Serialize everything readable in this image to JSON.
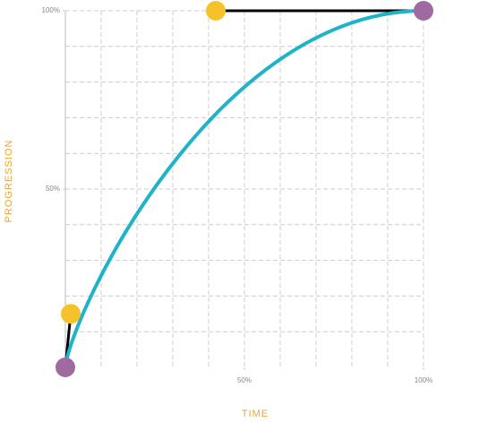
{
  "chart_data": {
    "type": "bezier",
    "x_label": "TIME",
    "y_label": "PROGRESSION",
    "xlim": [
      0,
      100
    ],
    "ylim": [
      0,
      100
    ],
    "xticks": [
      {
        "value": 50,
        "label": "50%"
      },
      {
        "value": 100,
        "label": "100%"
      }
    ],
    "yticks": [
      {
        "value": 50,
        "label": "50%"
      },
      {
        "value": 100,
        "label": "100%"
      }
    ],
    "grid": true,
    "points": {
      "x": [
        0,
        1.5,
        42,
        100
      ],
      "y": [
        0,
        15,
        100,
        100
      ]
    },
    "curve_color": "#1fb3c8",
    "end_color": "#9e6a9f",
    "handle_color": "#f6c22b",
    "label_color": "#f0a428"
  }
}
